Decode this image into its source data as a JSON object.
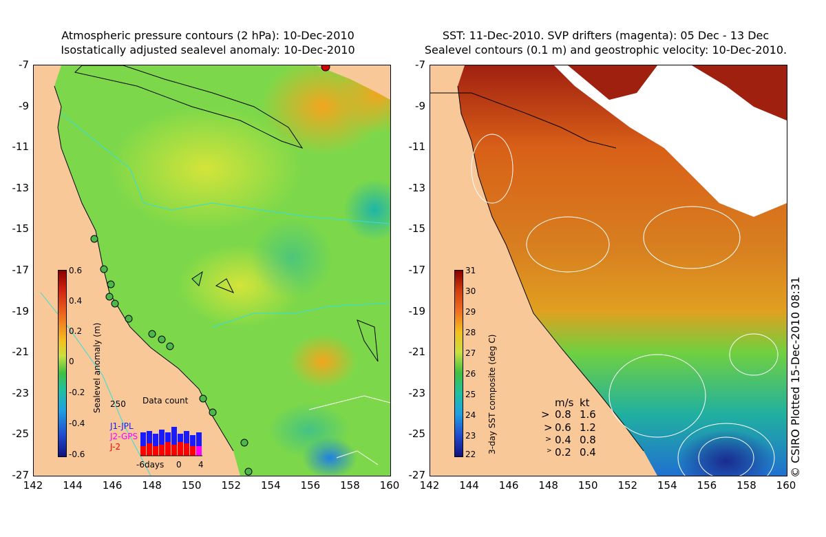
{
  "left": {
    "title1": "Atmospheric pressure contours (2 hPa): 10-Dec-2010",
    "title2": "Isostatically adjusted sealevel anomaly: 10-Dec-2010",
    "colorbar": {
      "title": "Sealevel anomaly (m)",
      "labels": [
        "0.6",
        "0.4",
        "0.2",
        "0",
        "-0.2",
        "-0.4",
        "-0.6"
      ],
      "range": [
        -0.6,
        0.6
      ]
    },
    "data_count": {
      "title": "Data count",
      "ymax_label": "250",
      "legend": [
        {
          "label": "J1-JPL",
          "color": "#1a1aff"
        },
        {
          "label": "J2-GPS",
          "color": "#ff00ff"
        },
        {
          "label": "J-2",
          "color": "#ff0000"
        }
      ],
      "xlabels": [
        "-6days",
        "0",
        "4"
      ]
    }
  },
  "right": {
    "title1": "SST: 11-Dec-2010. SVP drifters (magenta): 05 Dec - 13 Dec",
    "title2": "Sealevel contours (0.1 m) and geostrophic velocity: 10-Dec-2010.",
    "colorbar": {
      "title": "3-day SST composite (deg C)",
      "labels": [
        "31",
        "30",
        "29",
        "28",
        "27",
        "26",
        "25",
        "24",
        "23",
        "22"
      ],
      "range": [
        22,
        31
      ]
    },
    "velocity_key": {
      "header_ms": "m/s",
      "header_kt": "kt",
      "rows": [
        {
          "ms": "0.8",
          "kt": "1.6"
        },
        {
          "ms": "0.6",
          "kt": "1.2"
        },
        {
          "ms": "0.4",
          "kt": "0.8"
        },
        {
          "ms": "0.2",
          "kt": "0.4"
        }
      ]
    }
  },
  "axes": {
    "xticks": [
      "142",
      "144",
      "146",
      "148",
      "150",
      "152",
      "154",
      "156",
      "158",
      "160"
    ],
    "yticks": [
      "-7",
      "-9",
      "-11",
      "-13",
      "-15",
      "-17",
      "-19",
      "-21",
      "-23",
      "-25",
      "-27"
    ],
    "xrange": [
      142,
      160
    ],
    "yrange": [
      -27,
      -7
    ]
  },
  "credit": "© CSIRO Plotted 15-Dec-2010 08:31",
  "colors": {
    "land": "#f8c898",
    "sla_bg": "#7cd84a",
    "sst_bg": "#d8801c"
  }
}
